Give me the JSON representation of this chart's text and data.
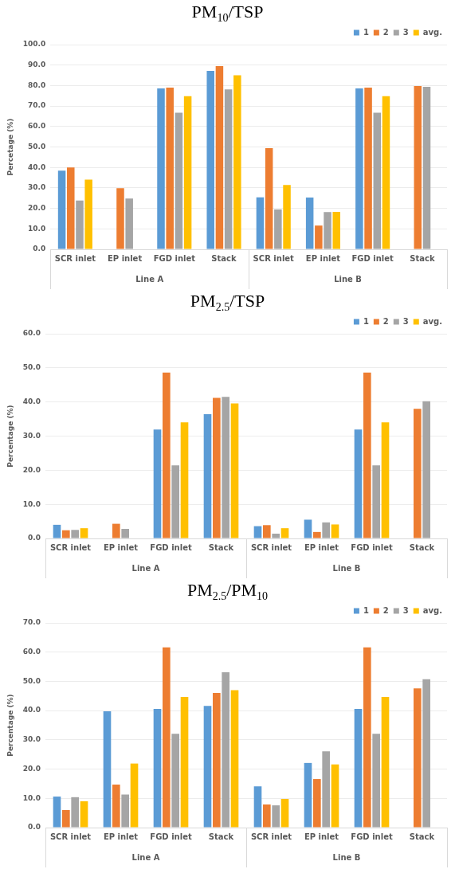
{
  "chart_data": [
    {
      "type": "bar",
      "title": "PM$_{10}$/TSP",
      "ylabel": "Percetage (%)",
      "categories": [
        "SCR inlet",
        "EP inlet",
        "FGD inlet",
        "Stack",
        "SCR inlet",
        "EP inlet",
        "FGD inlet",
        "Stack"
      ],
      "annotations": [
        "Line A",
        "Line B"
      ],
      "series": [
        {
          "name": "1",
          "color": "#5b9bd5",
          "values": [
            38.4,
            null,
            78.6,
            87.2,
            25.4,
            25.3,
            78.6,
            null
          ]
        },
        {
          "name": "2",
          "color": "#ed7d31",
          "values": [
            40.0,
            29.9,
            79.0,
            89.5,
            49.4,
            11.6,
            79.0,
            79.8
          ]
        },
        {
          "name": "3",
          "color": "#a5a5a5",
          "values": [
            23.8,
            24.8,
            66.7,
            78.1,
            19.5,
            18.2,
            66.7,
            79.4
          ]
        },
        {
          "name": "avg.",
          "color": "#ffc000",
          "values": [
            34.0,
            null,
            74.8,
            85.0,
            31.4,
            18.3,
            74.8,
            null
          ]
        }
      ],
      "ylim": [
        0,
        100
      ],
      "yticks": [
        {
          "value": 0,
          "label": "0.0"
        },
        {
          "value": 10,
          "label": "10.0"
        },
        {
          "value": 20,
          "label": "20.0"
        },
        {
          "value": 30,
          "label": "30.0"
        },
        {
          "value": 40,
          "label": "40.0"
        },
        {
          "value": 50,
          "label": "50.0"
        },
        {
          "value": 60,
          "label": "60.0"
        },
        {
          "value": 70,
          "label": "70.0"
        },
        {
          "value": 80,
          "label": "80.0"
        },
        {
          "value": 90,
          "label": "90.0"
        },
        {
          "value": 100,
          "label": "100.0"
        }
      ],
      "grid": "y",
      "legend": "top right"
    },
    {
      "type": "bar",
      "title": "PM$_{2.5}$/TSP",
      "ylabel": "Percentage (%)",
      "categories": [
        "SCR inlet",
        "EP inlet",
        "FGD inlet",
        "Stack",
        "SCR inlet",
        "EP inlet",
        "FGD inlet",
        "Stack"
      ],
      "annotations": [
        "Line A",
        "Line B"
      ],
      "series": [
        {
          "name": "1",
          "color": "#5b9bd5",
          "values": [
            4.0,
            null,
            31.9,
            36.4,
            3.6,
            5.5,
            31.9,
            null
          ]
        },
        {
          "name": "2",
          "color": "#ed7d31",
          "values": [
            2.4,
            4.3,
            48.6,
            41.2,
            3.9,
            1.9,
            48.6,
            38.0
          ]
        },
        {
          "name": "3",
          "color": "#a5a5a5",
          "values": [
            2.5,
            2.8,
            21.4,
            41.5,
            1.4,
            4.7,
            21.4,
            40.2
          ]
        },
        {
          "name": "avg.",
          "color": "#ffc000",
          "values": [
            3.0,
            null,
            34.0,
            39.6,
            3.0,
            4.1,
            34.0,
            null
          ]
        }
      ],
      "ylim": [
        0,
        60
      ],
      "yticks": [
        {
          "value": 0,
          "label": "0.0"
        },
        {
          "value": 10,
          "label": "10.0"
        },
        {
          "value": 20,
          "label": "20.0"
        },
        {
          "value": 30,
          "label": "30.0"
        },
        {
          "value": 40,
          "label": "40.0"
        },
        {
          "value": 50,
          "label": "50.0"
        },
        {
          "value": 60,
          "label": "60.0"
        }
      ],
      "grid": "y",
      "legend": "top right"
    },
    {
      "type": "bar",
      "title": "PM$_{2.5}$/PM$_{10}$",
      "ylabel": "Percentage (%)",
      "categories": [
        "SCR inlet",
        "EP inlet",
        "FGD inlet",
        "Stack",
        "SCR inlet",
        "EP inlet",
        "FGD inlet",
        "Stack"
      ],
      "annotations": [
        "Line A",
        "Line B"
      ],
      "series": [
        {
          "name": "1",
          "color": "#5b9bd5",
          "values": [
            10.6,
            39.8,
            40.6,
            41.6,
            14.1,
            22.1,
            40.6,
            null
          ]
        },
        {
          "name": "2",
          "color": "#ed7d31",
          "values": [
            6.0,
            14.7,
            61.6,
            46.0,
            7.9,
            16.6,
            61.6,
            47.6
          ]
        },
        {
          "name": "3",
          "color": "#a5a5a5",
          "values": [
            10.4,
            11.3,
            32.1,
            53.1,
            7.6,
            26.1,
            32.1,
            50.7
          ]
        },
        {
          "name": "avg.",
          "color": "#ffc000",
          "values": [
            9.0,
            21.9,
            44.7,
            47.0,
            9.8,
            21.6,
            44.7,
            null
          ]
        }
      ],
      "ylim": [
        0,
        70
      ],
      "yticks": [
        {
          "value": 0,
          "label": "0.0"
        },
        {
          "value": 10,
          "label": "10.0"
        },
        {
          "value": 20,
          "label": "20.0"
        },
        {
          "value": 30,
          "label": "30.0"
        },
        {
          "value": 40,
          "label": "40.0"
        },
        {
          "value": 50,
          "label": "50.0"
        },
        {
          "value": 60,
          "label": "60.0"
        },
        {
          "value": 70,
          "label": "70.0"
        }
      ],
      "grid": "y",
      "legend": "top right"
    }
  ]
}
